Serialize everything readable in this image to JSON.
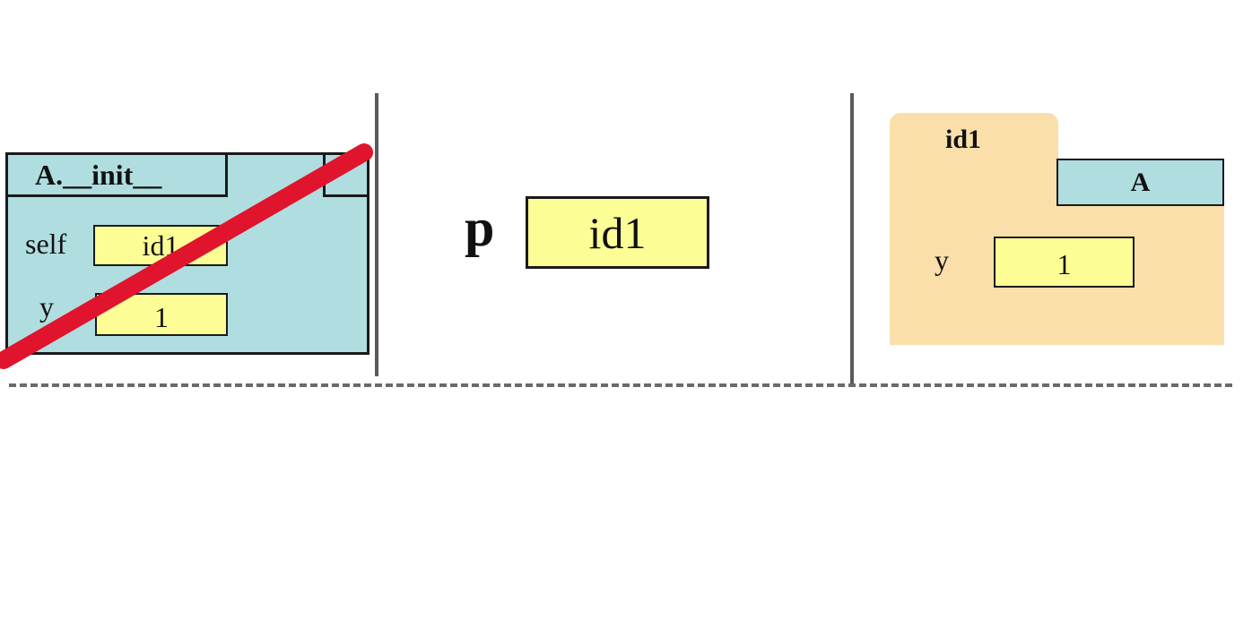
{
  "call_frame": {
    "title": "A.__init__",
    "variables": [
      {
        "name": "self",
        "value": "id1"
      },
      {
        "name": "y",
        "value": "1"
      }
    ],
    "erased": true
  },
  "global": {
    "variable": "p",
    "value": "id1"
  },
  "heap_object": {
    "id": "id1",
    "class_name": "A",
    "fields": [
      {
        "name": "y",
        "value": "1"
      }
    ]
  },
  "colors": {
    "frame_fill": "#b0dde0",
    "value_box_fill": "#fdfd96",
    "folder_fill": "#fbdfab",
    "strike": "#e0142c",
    "divider": "#5a5a5a"
  }
}
